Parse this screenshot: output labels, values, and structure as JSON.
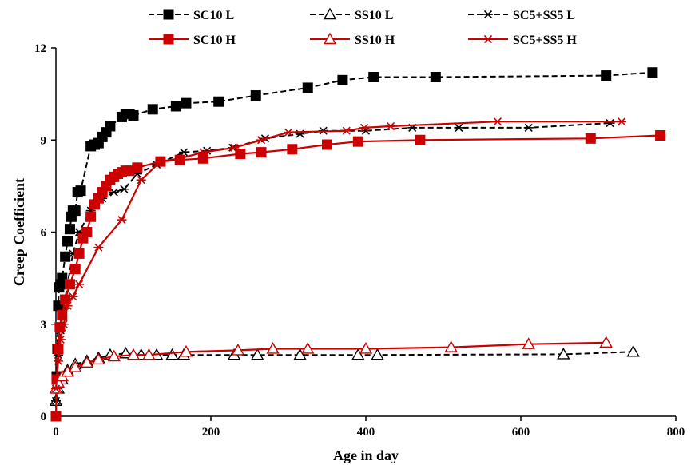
{
  "chart_data": {
    "type": "line",
    "title": "",
    "xlabel": "Age in day",
    "ylabel": "Creep Coefficient",
    "xlim": [
      0,
      800
    ],
    "ylim": [
      0,
      12
    ],
    "xticks": [
      0,
      200,
      400,
      600,
      800
    ],
    "yticks": [
      0,
      3,
      6,
      9,
      12
    ],
    "grid": false,
    "legend_position": "top",
    "series": [
      {
        "name": "SC10 L",
        "color": "#000000",
        "dash": true,
        "marker": "square-filled",
        "points": [
          [
            0,
            0
          ],
          [
            1,
            1.3
          ],
          [
            2,
            2.2
          ],
          [
            3,
            3.6
          ],
          [
            4,
            4.2
          ],
          [
            6,
            4.3
          ],
          [
            8,
            4.5
          ],
          [
            12,
            5.2
          ],
          [
            15,
            5.7
          ],
          [
            18,
            6.1
          ],
          [
            20,
            6.5
          ],
          [
            22,
            6.7
          ],
          [
            25,
            6.7
          ],
          [
            28,
            7.3
          ],
          [
            32,
            7.35
          ],
          [
            45,
            8.8
          ],
          [
            50,
            8.85
          ],
          [
            55,
            8.9
          ],
          [
            60,
            9.1
          ],
          [
            65,
            9.25
          ],
          [
            70,
            9.45
          ],
          [
            85,
            9.75
          ],
          [
            90,
            9.85
          ],
          [
            95,
            9.85
          ],
          [
            100,
            9.8
          ],
          [
            125,
            10.0
          ],
          [
            155,
            10.1
          ],
          [
            168,
            10.2
          ],
          [
            210,
            10.25
          ],
          [
            258,
            10.45
          ],
          [
            325,
            10.7
          ],
          [
            370,
            10.95
          ],
          [
            410,
            11.05
          ],
          [
            490,
            11.05
          ],
          [
            710,
            11.1
          ],
          [
            770,
            11.2
          ]
        ]
      },
      {
        "name": "SS10 L",
        "color": "#000000",
        "dash": true,
        "marker": "triangle-open",
        "points": [
          [
            0,
            0.5
          ],
          [
            3,
            0.9
          ],
          [
            8,
            1.2
          ],
          [
            15,
            1.5
          ],
          [
            25,
            1.7
          ],
          [
            40,
            1.8
          ],
          [
            55,
            1.9
          ],
          [
            70,
            2.0
          ],
          [
            90,
            2.05
          ],
          [
            110,
            2.0
          ],
          [
            130,
            2.0
          ],
          [
            150,
            2.0
          ],
          [
            165,
            2.0
          ],
          [
            230,
            2.0
          ],
          [
            260,
            2.0
          ],
          [
            315,
            2.0
          ],
          [
            390,
            2.0
          ],
          [
            415,
            2.0
          ],
          [
            655,
            2.02
          ],
          [
            745,
            2.1
          ]
        ]
      },
      {
        "name": "SC5+SS5 L",
        "color": "#000000",
        "dash": true,
        "marker": "asterisk",
        "points": [
          [
            0,
            0.5
          ],
          [
            3,
            2.0
          ],
          [
            6,
            2.8
          ],
          [
            10,
            3.5
          ],
          [
            15,
            4.3
          ],
          [
            22,
            5.3
          ],
          [
            30,
            6.0
          ],
          [
            45,
            6.7
          ],
          [
            60,
            7.1
          ],
          [
            75,
            7.3
          ],
          [
            88,
            7.4
          ],
          [
            105,
            7.9
          ],
          [
            130,
            8.2
          ],
          [
            165,
            8.6
          ],
          [
            195,
            8.65
          ],
          [
            228,
            8.75
          ],
          [
            270,
            9.05
          ],
          [
            315,
            9.2
          ],
          [
            345,
            9.3
          ],
          [
            400,
            9.3
          ],
          [
            460,
            9.4
          ],
          [
            520,
            9.4
          ],
          [
            610,
            9.4
          ],
          [
            715,
            9.55
          ]
        ]
      },
      {
        "name": "SC10 H",
        "color": "#cc0000",
        "dash": false,
        "marker": "square-filled",
        "points": [
          [
            0,
            0
          ],
          [
            1,
            1.2
          ],
          [
            3,
            2.2
          ],
          [
            5,
            2.9
          ],
          [
            8,
            3.3
          ],
          [
            12,
            3.8
          ],
          [
            18,
            4.3
          ],
          [
            25,
            4.8
          ],
          [
            30,
            5.3
          ],
          [
            35,
            5.8
          ],
          [
            40,
            6.0
          ],
          [
            45,
            6.5
          ],
          [
            50,
            6.9
          ],
          [
            55,
            7.1
          ],
          [
            60,
            7.3
          ],
          [
            65,
            7.5
          ],
          [
            70,
            7.7
          ],
          [
            75,
            7.8
          ],
          [
            80,
            7.9
          ],
          [
            85,
            7.95
          ],
          [
            90,
            8.0
          ],
          [
            95,
            8.0
          ],
          [
            105,
            8.1
          ],
          [
            135,
            8.3
          ],
          [
            160,
            8.35
          ],
          [
            190,
            8.4
          ],
          [
            238,
            8.55
          ],
          [
            265,
            8.6
          ],
          [
            305,
            8.7
          ],
          [
            350,
            8.85
          ],
          [
            390,
            8.95
          ],
          [
            470,
            9.0
          ],
          [
            690,
            9.05
          ],
          [
            780,
            9.15
          ]
        ]
      },
      {
        "name": "SS10 H",
        "color": "#cc0000",
        "dash": false,
        "marker": "triangle-open",
        "points": [
          [
            0,
            0.9
          ],
          [
            3,
            1.1
          ],
          [
            8,
            1.3
          ],
          [
            15,
            1.45
          ],
          [
            25,
            1.6
          ],
          [
            40,
            1.75
          ],
          [
            55,
            1.85
          ],
          [
            75,
            1.95
          ],
          [
            100,
            2.0
          ],
          [
            120,
            2.0
          ],
          [
            168,
            2.1
          ],
          [
            235,
            2.15
          ],
          [
            280,
            2.2
          ],
          [
            325,
            2.2
          ],
          [
            400,
            2.2
          ],
          [
            510,
            2.25
          ],
          [
            610,
            2.35
          ],
          [
            710,
            2.4
          ]
        ]
      },
      {
        "name": "SC5+SS5 H",
        "color": "#cc0000",
        "dash": false,
        "marker": "asterisk",
        "points": [
          [
            0,
            0.9
          ],
          [
            3,
            1.8
          ],
          [
            6,
            2.5
          ],
          [
            10,
            3.0
          ],
          [
            15,
            3.6
          ],
          [
            22,
            3.9
          ],
          [
            30,
            4.3
          ],
          [
            55,
            5.5
          ],
          [
            85,
            6.4
          ],
          [
            110,
            7.7
          ],
          [
            135,
            8.3
          ],
          [
            160,
            8.4
          ],
          [
            190,
            8.6
          ],
          [
            230,
            8.75
          ],
          [
            265,
            9.0
          ],
          [
            300,
            9.25
          ],
          [
            375,
            9.3
          ],
          [
            398,
            9.4
          ],
          [
            432,
            9.45
          ],
          [
            570,
            9.6
          ],
          [
            730,
            9.6
          ]
        ]
      }
    ]
  }
}
